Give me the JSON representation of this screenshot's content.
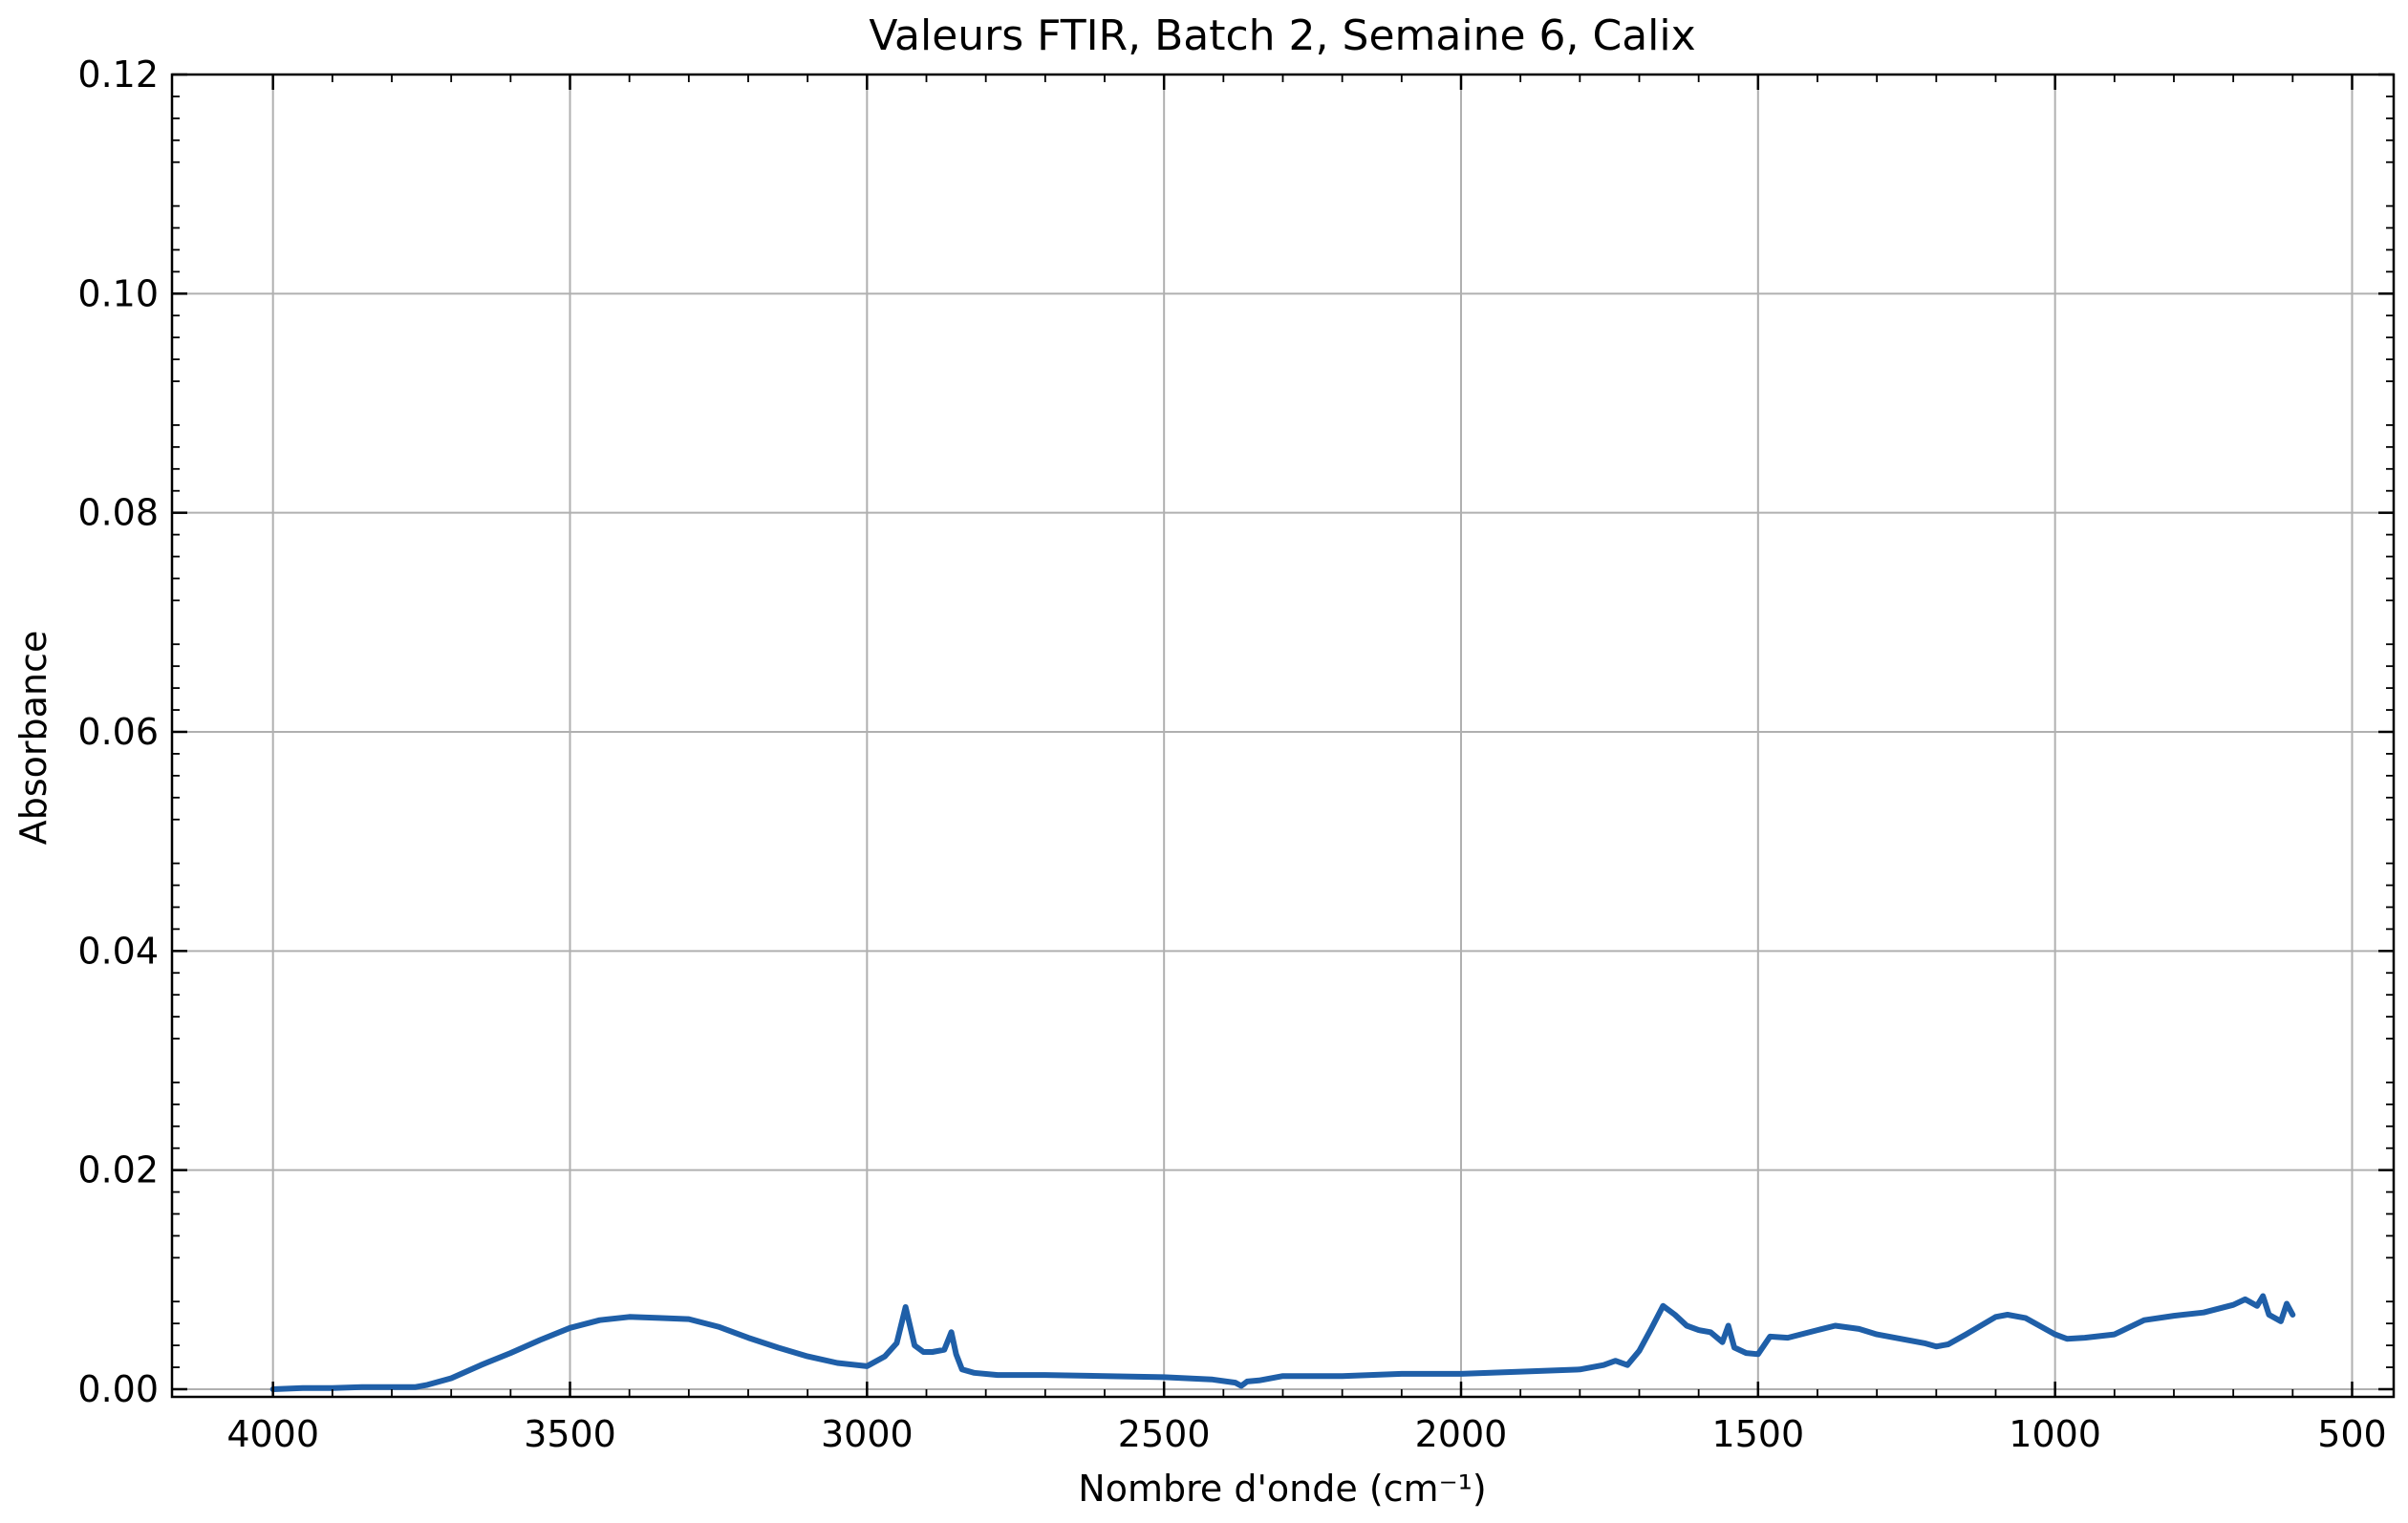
{
  "chart_data": {
    "type": "line",
    "title": "Valeurs FTIR, Batch 2, Semaine 6, Calix",
    "xlabel": "Nombre d'onde (cm⁻¹)",
    "ylabel": "Absorbance",
    "xlim": [
      4170,
      430
    ],
    "ylim": [
      -0.0007,
      0.12
    ],
    "x_reversed": true,
    "grid": true,
    "x_ticks": [
      4000,
      3500,
      3000,
      2500,
      2000,
      1500,
      1000,
      500
    ],
    "x_tick_labels": [
      "4000",
      "3500",
      "3000",
      "2500",
      "2000",
      "1500",
      "1000",
      "500"
    ],
    "y_ticks": [
      0.0,
      0.02,
      0.04,
      0.06,
      0.08,
      0.1,
      0.12
    ],
    "y_tick_labels": [
      "0.00",
      "0.02",
      "0.04",
      "0.06",
      "0.08",
      "0.10",
      "0.12"
    ],
    "series": [
      {
        "color": "#1f5fa8",
        "x": [
          4000,
          3950,
          3900,
          3850,
          3800,
          3760,
          3740,
          3700,
          3650,
          3600,
          3550,
          3500,
          3450,
          3400,
          3350,
          3300,
          3250,
          3200,
          3150,
          3100,
          3050,
          3000,
          2970,
          2950,
          2935,
          2920,
          2905,
          2890,
          2870,
          2858,
          2850,
          2840,
          2820,
          2780,
          2700,
          2600,
          2500,
          2420,
          2380,
          2370,
          2360,
          2340,
          2300,
          2200,
          2100,
          2000,
          1900,
          1800,
          1760,
          1740,
          1720,
          1700,
          1680,
          1660,
          1640,
          1620,
          1600,
          1580,
          1560,
          1550,
          1540,
          1520,
          1500,
          1480,
          1450,
          1400,
          1370,
          1330,
          1300,
          1260,
          1220,
          1200,
          1180,
          1150,
          1100,
          1080,
          1050,
          1000,
          980,
          950,
          900,
          850,
          800,
          750,
          700,
          680,
          660,
          650,
          640,
          620,
          610,
          600
        ],
        "y": [
          0.0,
          0.0001,
          0.0001,
          0.0002,
          0.0002,
          0.0002,
          0.0004,
          0.001,
          0.0022,
          0.0033,
          0.0045,
          0.0056,
          0.0063,
          0.0066,
          0.0065,
          0.0064,
          0.0057,
          0.0047,
          0.0038,
          0.003,
          0.0024,
          0.0021,
          0.003,
          0.0042,
          0.0075,
          0.004,
          0.0034,
          0.0034,
          0.0036,
          0.0052,
          0.0032,
          0.0018,
          0.0015,
          0.0013,
          0.0013,
          0.0012,
          0.0011,
          0.0009,
          0.0006,
          0.0003,
          0.0007,
          0.0008,
          0.0012,
          0.0012,
          0.0014,
          0.0014,
          0.0016,
          0.0018,
          0.0022,
          0.0026,
          0.0022,
          0.0035,
          0.0055,
          0.0076,
          0.0068,
          0.0058,
          0.0054,
          0.0052,
          0.0043,
          0.0058,
          0.0038,
          0.0033,
          0.0032,
          0.0048,
          0.0047,
          0.0054,
          0.0058,
          0.0055,
          0.005,
          0.0046,
          0.0042,
          0.0039,
          0.0041,
          0.005,
          0.0066,
          0.0068,
          0.0065,
          0.005,
          0.0046,
          0.0047,
          0.005,
          0.0063,
          0.0067,
          0.007,
          0.0077,
          0.0082,
          0.0076,
          0.0085,
          0.0068,
          0.0062,
          0.0078,
          0.0068
        ]
      }
    ]
  }
}
